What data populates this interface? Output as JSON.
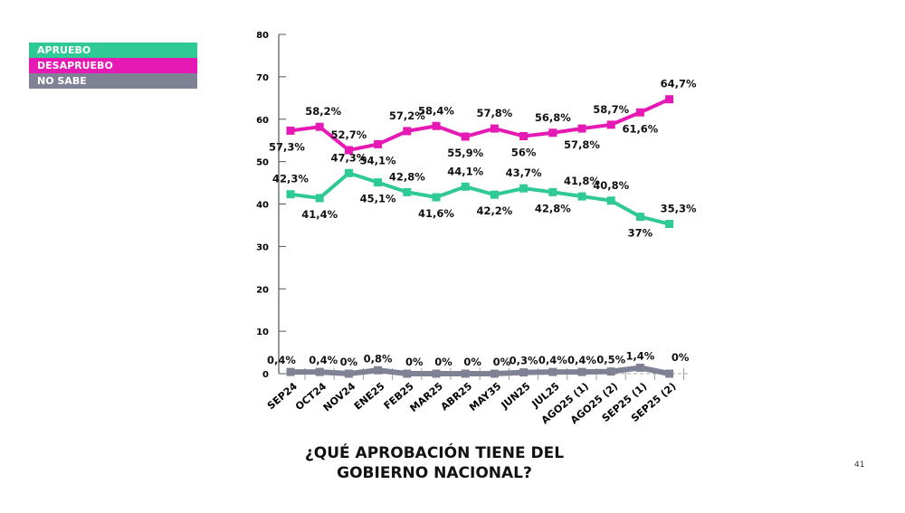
{
  "chart_data": {
    "type": "line",
    "title": "¿QUÉ APROBACIÓN TIENE DEL GOBIERNO NACIONAL?",
    "categories": [
      "SEP24",
      "OCT24",
      "NOV24",
      "ENE25",
      "FEB25",
      "MAR25",
      "ABR25",
      "MAY35",
      "JUN25",
      "JUL25",
      "AGO25 (1)",
      "AGO25 (2)",
      "SEP25 (1)",
      "SEP25 (2)"
    ],
    "ylim": [
      0,
      80
    ],
    "yticks": [
      "0",
      "10",
      "20",
      "30",
      "40",
      "50",
      "60",
      "70",
      "80"
    ],
    "legend_position": "top-left",
    "grid": false,
    "series": [
      {
        "name": "APRUEBO",
        "color": "#2fc995",
        "values": [
          42.3,
          41.4,
          47.3,
          45.1,
          42.8,
          41.6,
          44.1,
          42.2,
          43.7,
          42.8,
          41.8,
          40.8,
          37,
          35.3
        ],
        "labels": [
          "42,3%",
          "41,4%",
          "47,3%",
          "45,1%",
          "42,8%",
          "41,6%",
          "44,1%",
          "42,2%",
          "43,7%",
          "42,8%",
          "41,8%",
          "40,8%",
          "37%",
          "35,3%"
        ]
      },
      {
        "name": "DESAPRUEBO",
        "color": "#e619b4",
        "values": [
          57.3,
          58.2,
          52.7,
          54.1,
          57.2,
          58.4,
          55.9,
          57.8,
          56,
          56.8,
          57.8,
          58.7,
          61.6,
          64.7
        ],
        "labels": [
          "57,3%",
          "58,2%",
          "52,7%",
          "54,1%",
          "57,2%",
          "58,4%",
          "55,9%",
          "57,8%",
          "56%",
          "56,8%",
          "57,8%",
          "58,7%",
          "61,6%",
          "64,7%"
        ]
      },
      {
        "name": "NO SABE",
        "color": "#7f8294",
        "values": [
          0.4,
          0.4,
          0,
          0.8,
          0,
          0,
          0,
          0,
          0.3,
          0.4,
          0.4,
          0.5,
          1.4,
          0
        ],
        "labels": [
          "0,4%",
          "0,4%",
          "0%",
          "0,8%",
          "0%",
          "0%",
          "0%",
          "0%",
          "0,3%",
          "0,4%",
          "0,4%",
          "0,5%",
          "1,4%",
          "0%"
        ]
      }
    ]
  },
  "title_line1": "¿QUÉ APROBACIÓN TIENE DEL",
  "title_line2": "GOBIERNO NACIONAL?",
  "page_number": "41"
}
